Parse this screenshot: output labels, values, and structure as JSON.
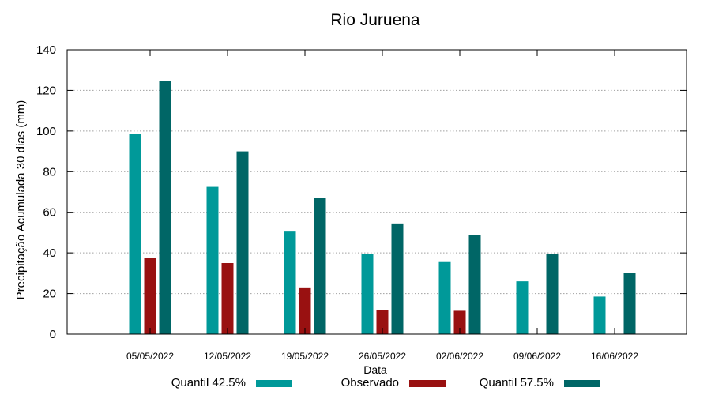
{
  "chart_data": {
    "type": "bar",
    "title": "Rio Juruena",
    "xlabel": "Data",
    "ylabel": "Precipitação Acumulada 30 dias (mm)",
    "categories": [
      "05/05/2022",
      "12/05/2022",
      "19/05/2022",
      "26/05/2022",
      "02/06/2022",
      "09/06/2022",
      "16/06/2022"
    ],
    "ylim": [
      0,
      140
    ],
    "yticks": [
      "0",
      "20",
      "40",
      "60",
      "80",
      "100",
      "120",
      "140"
    ],
    "grid": true,
    "legend_position": "bottom",
    "series": [
      {
        "name": "Quantil 42.5%",
        "color": "#009999",
        "values": [
          98.5,
          72.5,
          50.5,
          39.5,
          35.5,
          26,
          18.5
        ]
      },
      {
        "name": "Observado",
        "color": "#991111",
        "values": [
          37.5,
          35,
          23,
          12,
          11.5,
          null,
          null
        ]
      },
      {
        "name": "Quantil 57.5%",
        "color": "#006666",
        "values": [
          124.5,
          90,
          67,
          54.5,
          49,
          39.5,
          30
        ]
      }
    ]
  }
}
